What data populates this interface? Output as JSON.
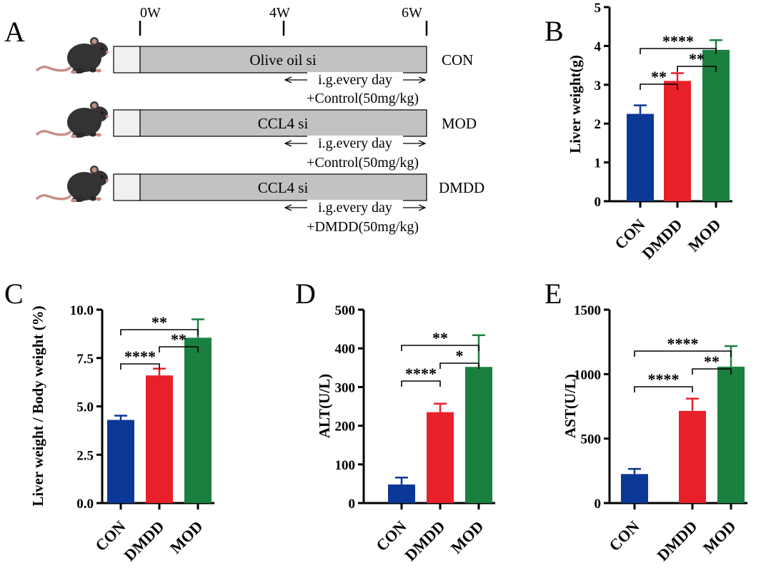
{
  "panel_a": {
    "letter": "A",
    "timepoints": [
      "0W",
      "4W",
      "6W"
    ],
    "groups": [
      {
        "bar_label": "Olive oil si",
        "group": "CON",
        "note_top": "i.g.every day",
        "note_bottom": "+Control(50mg/kg)"
      },
      {
        "bar_label": "CCL4 si",
        "group": "MOD",
        "note_top": "i.g.every day",
        "note_bottom": "+Control(50mg/kg)"
      },
      {
        "bar_label": "CCL4 si",
        "group": "DMDD",
        "note_top": "i.g.every day",
        "note_bottom": "+DMDD(50mg/kg)"
      }
    ]
  },
  "colors": {
    "CON": "#0b3796",
    "DMDD": "#e8202a",
    "MOD": "#1a803f"
  },
  "chart_data": [
    {
      "id": "B",
      "type": "bar",
      "letter": "B",
      "categories": [
        "CON",
        "DMDD",
        "MOD"
      ],
      "values": [
        2.25,
        3.1,
        3.9
      ],
      "errors": [
        0.22,
        0.2,
        0.25
      ],
      "ylabel": "Liver weight(g)",
      "ylim": [
        0,
        5
      ],
      "ticks": [
        0,
        1,
        2,
        3,
        4,
        5
      ],
      "tick_labels": [
        "0",
        "1",
        "2",
        "3",
        "4",
        "5"
      ],
      "significance": [
        {
          "from": 0,
          "to": 1,
          "label": "**",
          "level": 1
        },
        {
          "from": 1,
          "to": 2,
          "label": "**",
          "level": 2
        },
        {
          "from": 0,
          "to": 2,
          "label": "****",
          "level": 3
        }
      ]
    },
    {
      "id": "C",
      "type": "bar",
      "letter": "C",
      "categories": [
        "CON",
        "DMDD",
        "MOD"
      ],
      "values": [
        4.3,
        6.6,
        8.55
      ],
      "errors": [
        0.22,
        0.35,
        0.95
      ],
      "ylabel": "Liver weight / Body weight (%)",
      "ylim": [
        0,
        10
      ],
      "ticks": [
        0,
        2.5,
        5,
        7.5,
        10
      ],
      "tick_labels": [
        "0.0",
        "2.5",
        "5.0",
        "7.5",
        "10.0"
      ],
      "significance": [
        {
          "from": 0,
          "to": 1,
          "label": "****",
          "level": 1
        },
        {
          "from": 1,
          "to": 2,
          "label": "**",
          "level": 2
        },
        {
          "from": 0,
          "to": 2,
          "label": "**",
          "level": 3
        }
      ]
    },
    {
      "id": "D",
      "type": "bar",
      "letter": "D",
      "categories": [
        "CON",
        "DMDD",
        "MOD"
      ],
      "values": [
        48,
        235,
        352
      ],
      "errors": [
        18,
        22,
        82
      ],
      "ylabel": "ALT(U/L)",
      "ylim": [
        0,
        500
      ],
      "ticks": [
        0,
        100,
        200,
        300,
        400,
        500
      ],
      "tick_labels": [
        "0",
        "100",
        "200",
        "300",
        "400",
        "500"
      ],
      "significance": [
        {
          "from": 0,
          "to": 1,
          "label": "****",
          "level": 1
        },
        {
          "from": 1,
          "to": 2,
          "label": "*",
          "level": 2
        },
        {
          "from": 0,
          "to": 2,
          "label": "**",
          "level": 3
        }
      ]
    },
    {
      "id": "E",
      "type": "bar",
      "letter": "E",
      "categories": [
        "CON",
        "DMDD",
        "MOD"
      ],
      "values": [
        225,
        715,
        1058
      ],
      "errors": [
        40,
        95,
        160
      ],
      "ylabel": "AST(U/L)",
      "ylim": [
        0,
        1500
      ],
      "ticks": [
        0,
        500,
        1000,
        1500
      ],
      "tick_labels": [
        "0",
        "500",
        "1000",
        "1500"
      ],
      "significance": [
        {
          "from": 0,
          "to": 1,
          "label": "****",
          "level": 1
        },
        {
          "from": 1,
          "to": 2,
          "label": "**",
          "level": 2
        },
        {
          "from": 0,
          "to": 2,
          "label": "****",
          "level": 3
        }
      ]
    }
  ]
}
